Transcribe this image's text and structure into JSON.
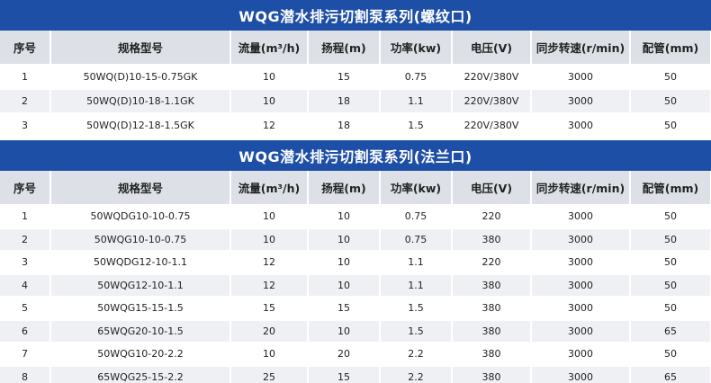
{
  "section1": {
    "title": "WQG潜水排污切割泵系列(螺纹口)",
    "headers": [
      "序号",
      "规格型号",
      "流量(m³/h)",
      "扬程(m)",
      "功率(kw)",
      "电压(V)",
      "同步转速(r/min)",
      "配管(mm)"
    ],
    "rows": [
      [
        "1",
        "50WQ(D)10-15-0.75GK",
        "10",
        "15",
        "0.75",
        "220V/380V",
        "3000",
        "50"
      ],
      [
        "2",
        "50WQ(D)10-18-1.1GK",
        "10",
        "18",
        "1.1",
        "220V/380V",
        "3000",
        "50"
      ],
      [
        "3",
        "50WQ(D)12-18-1.5GK",
        "12",
        "18",
        "1.5",
        "220V/380V",
        "3000",
        "50"
      ]
    ]
  },
  "section2": {
    "title": "WQG潜水排污切割泵系列(法兰口)",
    "headers": [
      "序号",
      "规格型号",
      "流量(m³/h)",
      "扬程(m)",
      "功率(kw)",
      "电压(V)",
      "同步转速(r/min)",
      "配管(mm)"
    ],
    "rows": [
      [
        "1",
        "50WQDG10-10-0.75",
        "10",
        "10",
        "0.75",
        "220",
        "3000",
        "50"
      ],
      [
        "2",
        "50WQG10-10-0.75",
        "10",
        "10",
        "0.75",
        "380",
        "3000",
        "50"
      ],
      [
        "3",
        "50WQDG12-10-1.1",
        "12",
        "10",
        "1.1",
        "220",
        "3000",
        "50"
      ],
      [
        "4",
        "50WQG12-10-1.1",
        "12",
        "10",
        "1.1",
        "380",
        "3000",
        "50"
      ],
      [
        "5",
        "50WQG15-15-1.5",
        "15",
        "15",
        "1.5",
        "380",
        "3000",
        "50"
      ],
      [
        "6",
        "65WQG20-10-1.5",
        "20",
        "10",
        "1.5",
        "380",
        "3000",
        "65"
      ],
      [
        "7",
        "50WQG10-20-2.2",
        "10",
        "20",
        "2.2",
        "380",
        "3000",
        "50"
      ],
      [
        "8",
        "65WQG25-15-2.2",
        "25",
        "15",
        "2.2",
        "380",
        "3000",
        "65"
      ]
    ]
  },
  "colors": {
    "title_bar": "#1e4fa6",
    "header_bg": "#dde1e7",
    "row_alt_bg": "#eef0f4"
  }
}
